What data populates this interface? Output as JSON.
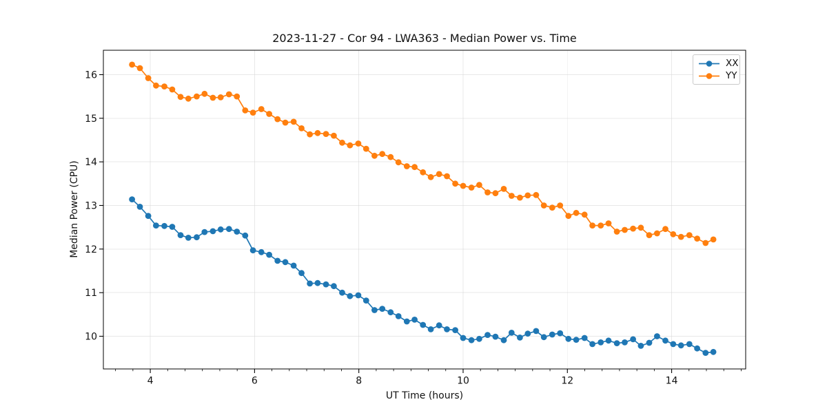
{
  "chart_data": {
    "type": "line",
    "title": "2023-11-27 - Cor 94 - LWA363 - Median Power vs. Time",
    "xlabel": "UT Time (hours)",
    "ylabel": "Median Power (CPU)",
    "xlim": [
      3.1,
      15.42
    ],
    "ylim": [
      9.25,
      16.56
    ],
    "xticks": [
      4,
      6,
      8,
      10,
      12,
      14
    ],
    "yticks": [
      10,
      11,
      12,
      13,
      14,
      15,
      16
    ],
    "x_minor_tick_step": 0.33333,
    "grid": true,
    "grid_color": "#d7d7d7",
    "legend": {
      "position": "upper right",
      "labels": [
        "XX",
        "YY"
      ]
    },
    "marker": "circle",
    "x": [
      3.65,
      3.8,
      3.96,
      4.11,
      4.27,
      4.42,
      4.58,
      4.73,
      4.89,
      5.04,
      5.2,
      5.35,
      5.51,
      5.66,
      5.82,
      5.97,
      6.13,
      6.28,
      6.44,
      6.59,
      6.75,
      6.9,
      7.06,
      7.21,
      7.37,
      7.52,
      7.68,
      7.83,
      7.99,
      8.14,
      8.3,
      8.45,
      8.61,
      8.76,
      8.92,
      9.07,
      9.23,
      9.38,
      9.54,
      9.69,
      9.85,
      10.0,
      10.16,
      10.31,
      10.47,
      10.62,
      10.78,
      10.93,
      11.09,
      11.24,
      11.4,
      11.55,
      11.71,
      11.86,
      12.02,
      12.17,
      12.33,
      12.48,
      12.64,
      12.79,
      12.95,
      13.1,
      13.26,
      13.41,
      13.57,
      13.72,
      13.88,
      14.03,
      14.18,
      14.34,
      14.49,
      14.65,
      14.8
    ],
    "series": [
      {
        "name": "XX",
        "color": "#1f77b4",
        "values": [
          13.14,
          12.97,
          12.76,
          12.54,
          12.53,
          12.51,
          12.32,
          12.26,
          12.27,
          12.39,
          12.41,
          12.45,
          12.46,
          12.4,
          12.31,
          11.97,
          11.93,
          11.87,
          11.73,
          11.7,
          11.62,
          11.45,
          11.21,
          11.22,
          11.19,
          11.15,
          11.0,
          10.92,
          10.94,
          10.82,
          10.6,
          10.63,
          10.55,
          10.46,
          10.34,
          10.38,
          10.26,
          10.16,
          10.25,
          10.16,
          10.14,
          9.96,
          9.91,
          9.94,
          10.03,
          9.99,
          9.91,
          10.08,
          9.97,
          10.06,
          10.12,
          9.98,
          10.04,
          10.07,
          9.94,
          9.92,
          9.96,
          9.82,
          9.86,
          9.9,
          9.84,
          9.86,
          9.93,
          9.78,
          9.85,
          10.0,
          9.9,
          9.82,
          9.79,
          9.82,
          9.72,
          9.62,
          9.64
        ]
      },
      {
        "name": "YY",
        "color": "#ff7f0e",
        "values": [
          16.23,
          16.15,
          15.92,
          15.75,
          15.73,
          15.66,
          15.49,
          15.45,
          15.5,
          15.56,
          15.47,
          15.48,
          15.55,
          15.5,
          15.18,
          15.13,
          15.21,
          15.1,
          14.98,
          14.9,
          14.92,
          14.77,
          14.63,
          14.66,
          14.64,
          14.6,
          14.44,
          14.38,
          14.42,
          14.3,
          14.14,
          14.18,
          14.11,
          13.99,
          13.9,
          13.88,
          13.76,
          13.65,
          13.72,
          13.67,
          13.5,
          13.45,
          13.41,
          13.47,
          13.3,
          13.28,
          13.38,
          13.22,
          13.18,
          13.23,
          13.24,
          13.0,
          12.95,
          13.0,
          12.76,
          12.83,
          12.79,
          12.54,
          12.54,
          12.59,
          12.4,
          12.44,
          12.47,
          12.49,
          12.32,
          12.36,
          12.46,
          12.34,
          12.28,
          12.32,
          12.24,
          12.14,
          12.22
        ]
      }
    ]
  }
}
